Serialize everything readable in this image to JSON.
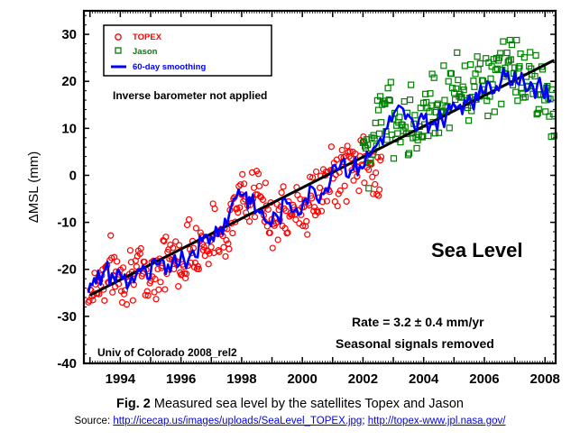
{
  "chart_data": {
    "type": "scatter",
    "title": "",
    "xlabel": "",
    "ylabel": "ΔMSL (mm)",
    "xlim": [
      1992.8,
      2008.35
    ],
    "ylim": [
      -40,
      35
    ],
    "xticks": [
      1994,
      1996,
      1998,
      2000,
      2002,
      2004,
      2006,
      2008
    ],
    "xtick_labels": [
      "1994",
      "1996",
      "1998",
      "2000",
      "2002",
      "2004",
      "2006",
      "2008"
    ],
    "yticks": [
      -40,
      -30,
      -20,
      -10,
      0,
      10,
      20,
      30
    ],
    "ytick_labels": [
      "-40",
      "-30",
      "-20",
      "-10",
      "0",
      "10",
      "20",
      "30"
    ],
    "legend": {
      "position": "top-left",
      "entries": [
        {
          "label": "TOPEX",
          "marker": "circle",
          "color": "#ff0000"
        },
        {
          "label": "Jason",
          "marker": "square",
          "color": "#008000"
        },
        {
          "label": "60-day smoothing",
          "marker": "line",
          "color": "#0000ff"
        }
      ]
    },
    "annotations": {
      "inverse_barometer": "Inverse barometer not applied",
      "panel_title": "Sea Level",
      "rate": "Rate = 3.2 ± 0.4 mm/yr",
      "seasonal": "Seasonal signals removed",
      "credit": "Univ of Colorado 2008_rel2"
    },
    "series": [
      {
        "name": "TOPEX",
        "type": "scatter",
        "color": "#ff0000",
        "x_range": [
          1992.95,
          2002.6
        ],
        "samples": 36,
        "smoothed_values": [
          -25,
          -23,
          -21,
          -20,
          -22,
          -19,
          -21,
          -22,
          -20,
          -18,
          -17,
          -19,
          -16,
          -14,
          -15,
          -13,
          -12,
          -10,
          -6,
          -3,
          -4,
          -7,
          -9,
          -8,
          -10,
          -6,
          -7,
          -5,
          -3,
          -1,
          0,
          2,
          3,
          2,
          1,
          3
        ],
        "spread": 6
      },
      {
        "name": "Jason",
        "type": "scatter",
        "color": "#008000",
        "x_range": [
          2002.0,
          2008.3
        ],
        "samples": 36,
        "smoothed_values": [
          3,
          5,
          8,
          11,
          15,
          12,
          10,
          14,
          12,
          11,
          10,
          13,
          15,
          17,
          14,
          16,
          18,
          20,
          18,
          17,
          19,
          21,
          22,
          20,
          19,
          22,
          24,
          25,
          23,
          21,
          20,
          19,
          18,
          17,
          16,
          15
        ],
        "spread": 7
      },
      {
        "name": "60-day smoothing",
        "type": "line",
        "color": "#0000ff",
        "x": [
          1992.95,
          1993.2,
          1993.5,
          1993.8,
          1994.0,
          1994.3,
          1994.6,
          1994.9,
          1995.2,
          1995.5,
          1995.8,
          1996.1,
          1996.4,
          1996.7,
          1997.0,
          1997.3,
          1997.6,
          1997.9,
          1998.1,
          1998.3,
          1998.6,
          1998.9,
          1999.2,
          1999.5,
          1999.8,
          2000.1,
          2000.4,
          2000.7,
          2001.0,
          2001.3,
          2001.6,
          2001.9,
          2002.2,
          2002.5,
          2002.8,
          2003.1,
          2003.4,
          2003.7,
          2004.0,
          2004.3,
          2004.6,
          2004.9,
          2005.2,
          2005.5,
          2005.8,
          2006.1,
          2006.4,
          2006.7,
          2007.0,
          2007.3,
          2007.6,
          2007.9,
          2008.2
        ],
        "values": [
          -25,
          -23,
          -20,
          -22,
          -21,
          -23,
          -20,
          -22,
          -19,
          -21,
          -17,
          -18,
          -16,
          -14,
          -13,
          -11,
          -8,
          -3,
          -4,
          -6,
          -8,
          -10,
          -9,
          -6,
          -7,
          -5,
          -3,
          -4,
          2,
          3,
          1,
          2,
          4,
          7,
          10,
          14,
          12,
          10,
          12,
          11,
          12,
          14,
          15,
          17,
          16,
          20,
          19,
          21,
          22,
          20,
          19,
          18,
          16
        ]
      },
      {
        "name": "Linear trend",
        "type": "line",
        "color": "#000000",
        "x": [
          1993.0,
          2008.3
        ],
        "values": [
          -25.5,
          24.5
        ]
      }
    ]
  },
  "caption": {
    "label": "Fig. 2",
    "text": " Measured sea level by the satellites Topex and Jason"
  },
  "source": {
    "prefix": "Source: ",
    "link1": "http://icecap.us/images/uploads/SeaLevel_TOPEX.jpg",
    "separator": "; ",
    "link2": "http://topex-www.jpl.nasa.gov/"
  }
}
